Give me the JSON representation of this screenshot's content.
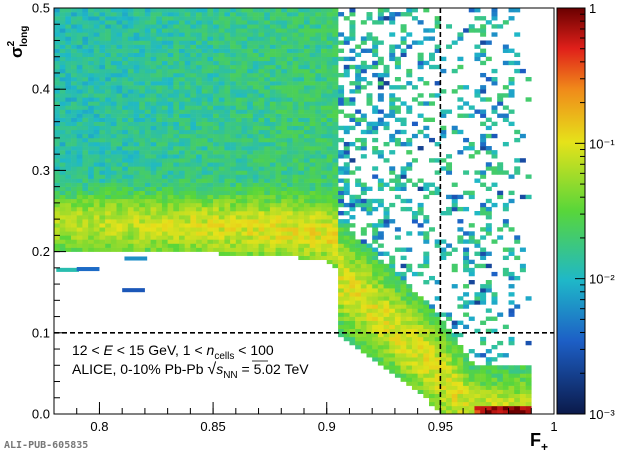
{
  "chart_data": {
    "type": "heatmap",
    "xlabel": "F+",
    "ylabel": "σ²long",
    "xlim": [
      0.78,
      1.0
    ],
    "ylim": [
      0.0,
      0.5
    ],
    "zlim": [
      0.001,
      1
    ],
    "zscale": "log",
    "grid": false,
    "x_ticks": [
      "0.8",
      "0.85",
      "0.9",
      "0.95",
      "1"
    ],
    "y_ticks": [
      "0.0",
      "0.1",
      "0.2",
      "0.3",
      "0.4",
      "0.5"
    ],
    "z_ticks": [
      "10⁻³",
      "10⁻²",
      "10⁻¹",
      "1"
    ],
    "cut_lines": {
      "x": 0.95,
      "y": 0.1
    },
    "annotations": [
      "12 < E < 15 GeV, 1 < ncells < 100",
      "ALICE, 0-10% Pb-Pb √sNN = 5.02 TeV"
    ],
    "bands": [
      {
        "x_range": [
          0.78,
          0.905
        ],
        "y_range": [
          0.205,
          0.5
        ],
        "level": "0.01–0.06 (dense, uniform)"
      },
      {
        "x_range": [
          0.78,
          0.9
        ],
        "y_range": [
          0.2,
          0.25
        ],
        "level": "0.05–0.08 (ridge)"
      },
      {
        "x_range": [
          0.9,
          0.975
        ],
        "y_range": [
          0.0,
          0.2
        ],
        "level": "0.02–0.1 (falling band)"
      },
      {
        "x_range": [
          0.965,
          0.99
        ],
        "y_range": [
          0.0,
          0.01
        ],
        "level": "≈1 (peak)"
      }
    ]
  },
  "labels": {
    "xlabel_main": "F",
    "xlabel_sub": "+",
    "ylabel_main": "σ",
    "ylabel_sup": "2",
    "ylabel_sub": "long",
    "annot1_a": "12 < ",
    "annot1_e": "E",
    "annot1_b": " < 15 GeV, 1 < ",
    "annot1_n": "n",
    "annot1_cells": "cells",
    "annot1_c": " < 100",
    "annot2_a": "ALICE, 0-10% Pb-Pb ",
    "annot2_s": "s",
    "annot2_nn": "NN",
    "annot2_b": " = 5.02 TeV",
    "pub_id": "ALI-PUB-605835"
  },
  "colors": {
    "frame": "#000000",
    "cut_line": "#000000",
    "scale_low": "#0b1a4a",
    "scale_blue": "#1d5fc6",
    "scale_cyan": "#1fb8c8",
    "scale_green": "#58d63a",
    "scale_yellow": "#e6e21a",
    "scale_red": "#e0201a",
    "scale_high": "#6a0000"
  }
}
